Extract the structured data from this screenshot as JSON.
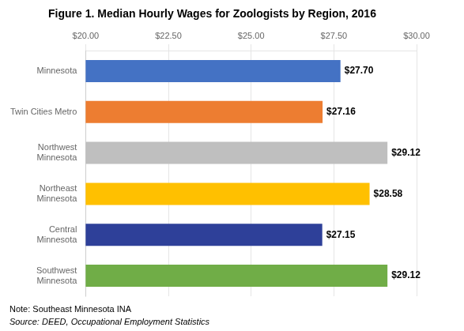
{
  "chart_data": {
    "type": "bar",
    "orientation": "horizontal",
    "title": "Figure 1. Median Hourly Wages for Zoologists by Region, 2016",
    "categories": [
      "Minnesota",
      "Twin Cities Metro",
      "Northwest\nMinnesota",
      "Northeast\nMinnesota",
      "Central\nMinnesota",
      "Southwest\nMinnesota"
    ],
    "values": [
      27.7,
      27.16,
      29.12,
      28.58,
      27.15,
      29.12
    ],
    "value_labels": [
      "$27.70",
      "$27.16",
      "$29.12",
      "$28.58",
      "$27.15",
      "$29.12"
    ],
    "data_labels": true,
    "colors": [
      "#4472C4",
      "#ED7D31",
      "#BFBFBF",
      "#FFC000",
      "#2E4099",
      "#70AD47"
    ],
    "xlim": [
      20.0,
      30.0
    ],
    "xticks": [
      {
        "value": 20.0,
        "label": "$20.00"
      },
      {
        "value": 22.5,
        "label": "$22.50"
      },
      {
        "value": 25.0,
        "label": "$25.00"
      },
      {
        "value": 27.5,
        "label": "$27.50"
      },
      {
        "value": 30.0,
        "label": "$30.00"
      }
    ],
    "grid": true,
    "annotations": [
      "Note: Southeast Minnesota INA",
      "Source: DEED, Occupational Employment Statistics"
    ]
  }
}
